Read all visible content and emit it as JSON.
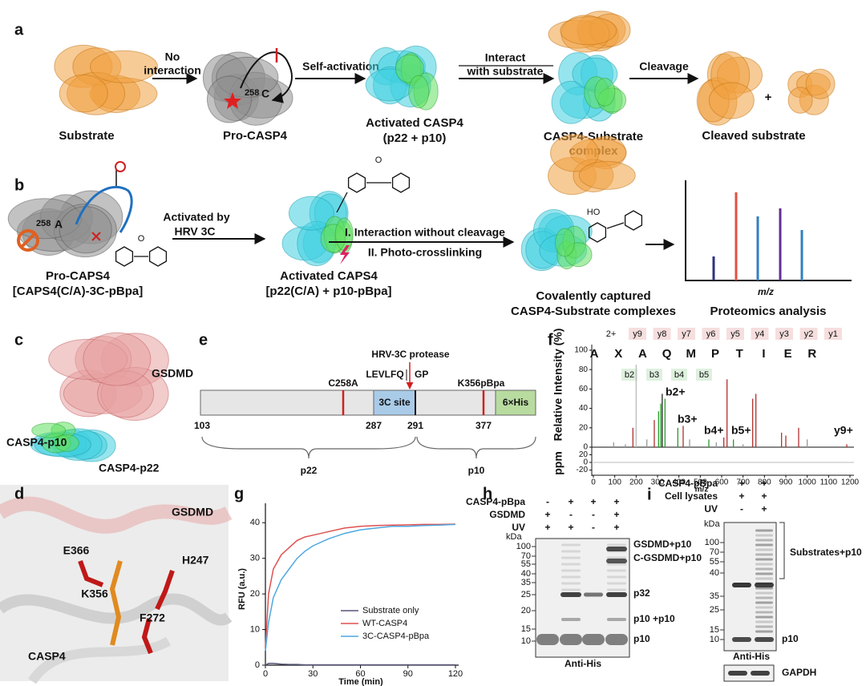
{
  "panels": {
    "a": {
      "label": "a",
      "no_interaction": [
        "No",
        "interaction"
      ],
      "self_activation": "Self-activation",
      "interact": [
        "Interact",
        "with substrate"
      ],
      "cleavage": "Cleavage",
      "plus": "+",
      "residue_num": "258",
      "residue": "C",
      "captions": {
        "substrate": "Substrate",
        "pro_casp4": "Pro-CASP4",
        "activated": [
          "Activated CASP4",
          "(p22 + p10)"
        ],
        "complex": [
          "CASP4-Substrate",
          "complex"
        ],
        "cleaved": "Cleaved substrate"
      }
    },
    "b": {
      "label": "b",
      "residue_num": "258",
      "residue": "A",
      "activated_by": [
        "Activated by",
        "HRV 3C"
      ],
      "step1": "I. Interaction without cleavage",
      "step2": "II. Photo-crosslinking",
      "ketone_o": "O",
      "hydroxyl": "HO",
      "captions": {
        "pro": [
          "Pro-CAPS4",
          "[CAPS4(C/A)-3C-pBpa]"
        ],
        "activated": [
          "Activated CAPS4",
          "[p22(C/A) + p10-pBpa]"
        ],
        "captured": [
          "Covalently captured",
          "CASP4-Substrate complexes"
        ],
        "proteomics": "Proteomics analysis"
      },
      "ms_axis": "m/z"
    },
    "c": {
      "label": "c",
      "gsdmd": "GSDMD",
      "p10": "CASP4-p10",
      "p22": "CASP4-p22"
    },
    "d": {
      "label": "d",
      "residues": [
        "E366",
        "H247",
        "K356",
        "F272"
      ],
      "gsdmd": "GSDMD",
      "casp4": "CASP4"
    },
    "e": {
      "label": "e",
      "protease": "HRV-3C protease",
      "site_left": "LEVLFQ",
      "site_right": "GP",
      "mutations": [
        "C258A",
        "K356pBpa"
      ],
      "site": "3C site",
      "tag": "6×His",
      "positions": [
        103,
        287,
        291,
        377
      ],
      "p22": "p22",
      "p10": "p10"
    },
    "f": {
      "label": "f",
      "charge": "2+",
      "y_ions": [
        "y9",
        "y8",
        "y7",
        "y6",
        "y5",
        "y4",
        "y3",
        "y2",
        "y1"
      ],
      "sequence": [
        "A",
        "X",
        "A",
        "Q",
        "M",
        "P",
        "T",
        "I",
        "E",
        "R"
      ],
      "b_ions": [
        "b2",
        "b3",
        "b4",
        "b5"
      ],
      "peak_labels": [
        "b2+",
        "b3+",
        "b4+",
        "b5+",
        "y9+"
      ]
    },
    "g": {
      "label": "g"
    },
    "h": {
      "label": "h",
      "rows": [
        "CASP4-pBpa",
        "GSDMD",
        "UV"
      ],
      "signs": [
        [
          "-",
          "+",
          "+",
          "+"
        ],
        [
          "+",
          "-",
          "-",
          "+"
        ],
        [
          "+",
          "+",
          "-",
          "+"
        ]
      ],
      "unit": "kDa",
      "markers": [
        100,
        70,
        55,
        40,
        35,
        25,
        20,
        15,
        10
      ],
      "bands": [
        "GSDMD+p10",
        "C-GSDMD+p10",
        "p32",
        "p10 +p10",
        "p10"
      ],
      "antibody": "Anti-His"
    },
    "i": {
      "label": "i",
      "rows": [
        "CASP4-pBpa",
        "Cell lysates",
        "UV"
      ],
      "signs": [
        [
          "+",
          "+"
        ],
        [
          "+",
          "+"
        ],
        [
          "-",
          "+"
        ]
      ],
      "unit": "kDa",
      "markers": [
        100,
        70,
        55,
        40,
        35,
        25,
        15,
        10
      ],
      "bands": [
        "Substrates+p10",
        "p10"
      ],
      "antibody": "Anti-His",
      "loading": "GAPDH"
    }
  },
  "chart_data": [
    {
      "type": "bar",
      "ylabel": "Relative Intensity (%)",
      "xlabel": "m/z",
      "y2label": "ppm",
      "x": [
        95,
        150,
        185,
        200,
        250,
        285,
        305,
        315,
        322,
        335,
        395,
        420,
        450,
        540,
        575,
        610,
        625,
        655,
        700,
        745,
        760,
        880,
        900,
        960,
        1000,
        1185
      ],
      "values": [
        5,
        3,
        20,
        85,
        8,
        28,
        37,
        45,
        55,
        50,
        20,
        22,
        8,
        8,
        5,
        10,
        70,
        8,
        3,
        50,
        55,
        15,
        12,
        20,
        8,
        3
      ],
      "colors": [
        "#999999",
        "#999999",
        "#b03030",
        "#bbbbbb",
        "#999999",
        "#b03030",
        "#2a9a2a",
        "#2a9a2a",
        "#222222",
        "#2a9a2a",
        "#2a9a2a",
        "#b03030",
        "#999999",
        "#2a9a2a",
        "#999999",
        "#b03030",
        "#b03030",
        "#2a9a2a",
        "#999999",
        "#b03030",
        "#b03030",
        "#b03030",
        "#b03030",
        "#b03030",
        "#999999",
        "#b03030"
      ],
      "xlim": [
        0,
        1200
      ],
      "ylim": [
        0,
        100
      ],
      "y2lim": [
        -25,
        25
      ],
      "xticks": [
        0,
        100,
        200,
        300,
        400,
        500,
        600,
        700,
        800,
        900,
        1000,
        1100,
        1200
      ],
      "yticks": [
        0,
        20,
        40,
        60,
        80,
        100
      ],
      "y2ticks": [
        20,
        0,
        -20
      ]
    },
    {
      "type": "line",
      "ylabel": "RFU (a.u.)",
      "xlabel": "Time (min)",
      "x": [
        0,
        2,
        5,
        10,
        15,
        20,
        25,
        30,
        40,
        50,
        60,
        70,
        80,
        90,
        100,
        110,
        120
      ],
      "series": [
        {
          "name": "Substrate only",
          "color": "#555577",
          "values": [
            0,
            0.5,
            0.5,
            0.3,
            0.2,
            0.2,
            0.1,
            0.1,
            0.1,
            0.1,
            0.1,
            0.1,
            0.1,
            0.1,
            0.1,
            0.1,
            0.1
          ]
        },
        {
          "name": "WT-CASP4",
          "color": "#e05050",
          "values": [
            5,
            20,
            27,
            31,
            33,
            35,
            36,
            36.5,
            37.5,
            38.5,
            39,
            39.2,
            39.3,
            39.4,
            39.5,
            39.5,
            39.6
          ]
        },
        {
          "name": "3C-CASP4-pBpa",
          "color": "#4fa8e0",
          "values": [
            4,
            12,
            19,
            24,
            27,
            30,
            32,
            33.5,
            35.5,
            37,
            38,
            38.5,
            39,
            39,
            39.2,
            39.3,
            39.5
          ]
        }
      ],
      "xlim": [
        0,
        120
      ],
      "ylim": [
        0,
        45
      ],
      "xticks": [
        0,
        30,
        60,
        90,
        120
      ],
      "yticks": [
        0,
        10,
        20,
        30,
        40
      ],
      "legend": "center"
    }
  ]
}
